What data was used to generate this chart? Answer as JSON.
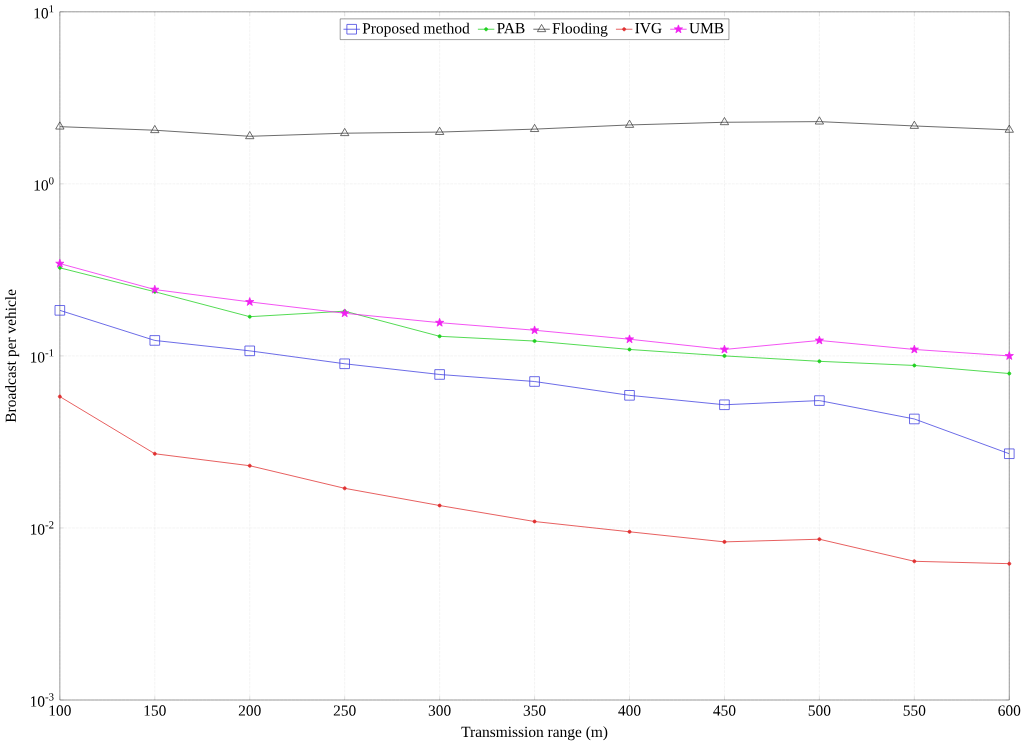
{
  "chart_data": {
    "type": "line",
    "xlabel": "Transmission range (m)",
    "ylabel": "Broadcast per vehicle",
    "x": [
      100,
      150,
      200,
      250,
      300,
      350,
      400,
      450,
      500,
      550,
      600
    ],
    "series": [
      {
        "name": "Proposed method",
        "color": "#4040e0",
        "marker": "square",
        "values": [
          0.184,
          0.123,
          0.107,
          0.09,
          0.078,
          0.071,
          0.059,
          0.052,
          0.055,
          0.043,
          0.027
        ]
      },
      {
        "name": "PAB",
        "color": "#20d020",
        "marker": "circle",
        "values": [
          0.325,
          0.236,
          0.169,
          0.182,
          0.13,
          0.122,
          0.109,
          0.1,
          0.093,
          0.088,
          0.079
        ]
      },
      {
        "name": "Flooding",
        "color": "#404040",
        "marker": "triangle",
        "values": [
          2.15,
          2.05,
          1.89,
          1.97,
          2.0,
          2.08,
          2.2,
          2.28,
          2.3,
          2.17,
          2.06
        ]
      },
      {
        "name": "IVG",
        "color": "#e03030",
        "marker": "circle",
        "values": [
          0.058,
          0.027,
          0.023,
          0.017,
          0.0135,
          0.0109,
          0.0095,
          0.0083,
          0.0086,
          0.0064,
          0.0062
        ]
      },
      {
        "name": "UMB",
        "color": "#f020f0",
        "marker": "star",
        "values": [
          0.344,
          0.243,
          0.206,
          0.177,
          0.156,
          0.141,
          0.125,
          0.109,
          0.123,
          0.109,
          0.1
        ]
      }
    ],
    "log": "y",
    "grid": true,
    "legend": "top",
    "xlim": [
      100,
      600
    ],
    "ylim": [
      0.001,
      10
    ],
    "xticks": [
      100,
      150,
      200,
      250,
      300,
      350,
      400,
      450,
      500,
      550,
      600
    ],
    "yticks": [
      {
        "value": 0.001,
        "label": "10$^{-3}$"
      },
      {
        "value": 0.01,
        "label": "10$^{-2}$"
      },
      {
        "value": 0.1,
        "label": "10$^{-1}$"
      },
      {
        "value": 1,
        "label": "10$^{0}$"
      },
      {
        "value": 10,
        "label": "10$^{1}$"
      }
    ]
  }
}
